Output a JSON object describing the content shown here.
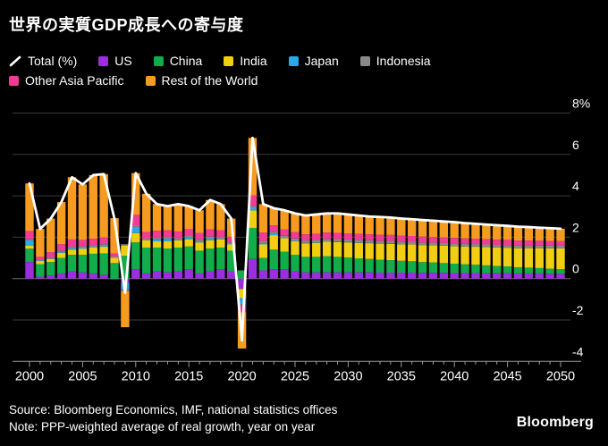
{
  "header": {
    "title": "世界の実質GDP成長への寄与度"
  },
  "footer": {
    "source": "Source: Bloomberg Economics, IMF, national statistics offices",
    "note": "Note: PPP-weighted average of real growth, year on year",
    "logo": "Bloomberg"
  },
  "chart_data": {
    "type": "bar",
    "stacked": true,
    "title": "世界の実質GDP成長への寄与度",
    "xlabel": "",
    "ylabel": "",
    "x_range": [
      2000,
      2050
    ],
    "x_tick_interval": 5,
    "x_tick_labels": [
      "2000",
      "2005",
      "2010",
      "2015",
      "2020",
      "2025",
      "2030",
      "2035",
      "2040",
      "2045",
      "2050"
    ],
    "ylim": [
      -4,
      8
    ],
    "yticks": [
      8,
      6,
      4,
      2,
      0,
      -2,
      -4
    ],
    "ytick_labels": [
      "8%",
      "6",
      "4",
      "2",
      "0",
      "-2",
      "-4"
    ],
    "grid": true,
    "legend_position": "top",
    "background_color": "#000000",
    "gridline_color": "#3b3b3b",
    "zeroline_color": "#6e6e6e",
    "axis_color": "#999999",
    "text_color": "#ffffff",
    "categories": [
      2000,
      2001,
      2002,
      2003,
      2004,
      2005,
      2006,
      2007,
      2008,
      2009,
      2010,
      2011,
      2012,
      2013,
      2014,
      2015,
      2016,
      2017,
      2018,
      2019,
      2020,
      2021,
      2022,
      2023,
      2024,
      2025,
      2026,
      2027,
      2028,
      2029,
      2030,
      2031,
      2032,
      2033,
      2034,
      2035,
      2036,
      2037,
      2038,
      2039,
      2040,
      2041,
      2042,
      2043,
      2044,
      2045,
      2046,
      2047,
      2048,
      2049,
      2050
    ],
    "total_line": {
      "id": "total",
      "label": "Total (%)",
      "color": "#ffffff",
      "values": [
        4.6,
        2.4,
        2.9,
        3.7,
        4.9,
        4.55,
        5.0,
        5.05,
        2.89,
        -0.69,
        5.1,
        4.1,
        3.6,
        3.5,
        3.6,
        3.5,
        3.3,
        3.8,
        3.6,
        2.9,
        -2.98,
        6.8,
        3.6,
        3.4,
        3.3,
        3.15,
        3.05,
        3.1,
        3.15,
        3.15,
        3.1,
        3.05,
        3.0,
        2.98,
        2.95,
        2.9,
        2.87,
        2.83,
        2.8,
        2.76,
        2.73,
        2.68,
        2.65,
        2.61,
        2.58,
        2.55,
        2.51,
        2.49,
        2.46,
        2.44,
        2.41
      ]
    },
    "series": [
      {
        "id": "us",
        "label": "US",
        "color": "#9B2FDF",
        "values": [
          0.8,
          0.1,
          0.15,
          0.25,
          0.35,
          0.3,
          0.25,
          0.17,
          0.0,
          -0.2,
          0.45,
          0.25,
          0.35,
          0.3,
          0.35,
          0.45,
          0.25,
          0.35,
          0.45,
          0.35,
          -0.5,
          0.95,
          0.4,
          0.45,
          0.45,
          0.35,
          0.3,
          0.3,
          0.3,
          0.3,
          0.3,
          0.3,
          0.3,
          0.29,
          0.29,
          0.29,
          0.29,
          0.28,
          0.28,
          0.28,
          0.27,
          0.27,
          0.27,
          0.26,
          0.26,
          0.26,
          0.25,
          0.25,
          0.25,
          0.24,
          0.24
        ]
      },
      {
        "id": "china",
        "label": "China",
        "color": "#12AC4B",
        "values": [
          0.65,
          0.6,
          0.65,
          0.75,
          0.8,
          0.85,
          0.95,
          1.05,
          0.75,
          1.1,
          1.3,
          1.25,
          1.15,
          1.15,
          1.15,
          1.1,
          1.1,
          1.1,
          1.05,
          1.0,
          0.4,
          1.5,
          0.6,
          0.95,
          0.85,
          0.8,
          0.75,
          0.75,
          0.78,
          0.75,
          0.72,
          0.68,
          0.65,
          0.62,
          0.6,
          0.57,
          0.55,
          0.52,
          0.5,
          0.47,
          0.45,
          0.42,
          0.4,
          0.38,
          0.35,
          0.33,
          0.3,
          0.28,
          0.26,
          0.24,
          0.22
        ]
      },
      {
        "id": "india",
        "label": "India",
        "color": "#F2CE12",
        "values": [
          0.15,
          0.15,
          0.15,
          0.25,
          0.25,
          0.3,
          0.3,
          0.32,
          0.25,
          0.5,
          0.45,
          0.35,
          0.3,
          0.35,
          0.35,
          0.35,
          0.4,
          0.4,
          0.4,
          0.3,
          -0.45,
          0.85,
          0.65,
          0.7,
          0.65,
          0.65,
          0.65,
          0.68,
          0.7,
          0.72,
          0.73,
          0.75,
          0.76,
          0.78,
          0.79,
          0.8,
          0.81,
          0.82,
          0.83,
          0.84,
          0.85,
          0.86,
          0.87,
          0.88,
          0.89,
          0.9,
          0.92,
          0.94,
          0.96,
          0.98,
          1.0
        ]
      },
      {
        "id": "japan",
        "label": "Japan",
        "color": "#2CA8E4",
        "values": [
          0.25,
          0.02,
          0.01,
          0.05,
          0.07,
          0.05,
          0.04,
          0.04,
          -0.03,
          -0.35,
          0.3,
          0.0,
          0.1,
          0.12,
          0.02,
          0.08,
          0.05,
          0.1,
          0.03,
          0.02,
          -0.28,
          0.12,
          0.05,
          0.05,
          0.0,
          0.02,
          0.02,
          0.02,
          0.02,
          0.02,
          0.02,
          0.02,
          0.02,
          0.02,
          0.02,
          0.01,
          0.01,
          0.01,
          0.01,
          0.01,
          0.01,
          0.01,
          0.01,
          0.01,
          0.01,
          0.01,
          0.01,
          0.01,
          0.01,
          0.01,
          0.01
        ]
      },
      {
        "id": "indonesia",
        "label": "Indonesia",
        "color": "#8A8A8A",
        "values": [
          0.05,
          0.05,
          0.06,
          0.06,
          0.07,
          0.07,
          0.07,
          0.08,
          0.07,
          0.06,
          0.08,
          0.08,
          0.08,
          0.08,
          0.08,
          0.08,
          0.08,
          0.08,
          0.08,
          0.08,
          -0.05,
          0.1,
          0.12,
          0.12,
          0.12,
          0.12,
          0.12,
          0.12,
          0.12,
          0.12,
          0.12,
          0.12,
          0.12,
          0.12,
          0.12,
          0.12,
          0.12,
          0.12,
          0.12,
          0.12,
          0.12,
          0.12,
          0.12,
          0.12,
          0.12,
          0.12,
          0.12,
          0.12,
          0.12,
          0.12,
          0.12
        ]
      },
      {
        "id": "other_asia_pacific",
        "label": "Other Asia Pacific",
        "color": "#F23A97",
        "values": [
          0.4,
          0.13,
          0.25,
          0.3,
          0.35,
          0.3,
          0.32,
          0.33,
          0.15,
          -0.05,
          0.5,
          0.32,
          0.33,
          0.33,
          0.33,
          0.33,
          0.33,
          0.35,
          0.33,
          0.27,
          -0.35,
          0.5,
          0.4,
          0.3,
          0.3,
          0.3,
          0.3,
          0.3,
          0.3,
          0.3,
          0.3,
          0.3,
          0.29,
          0.29,
          0.29,
          0.28,
          0.28,
          0.28,
          0.27,
          0.27,
          0.27,
          0.26,
          0.26,
          0.25,
          0.25,
          0.25,
          0.24,
          0.24,
          0.23,
          0.23,
          0.22
        ]
      },
      {
        "id": "rest_of_world",
        "label": "Rest of the World",
        "color": "#F59B20",
        "values": [
          2.3,
          1.35,
          1.63,
          2.04,
          3.01,
          2.68,
          3.07,
          3.06,
          1.7,
          -1.75,
          2.02,
          1.85,
          1.29,
          1.17,
          1.32,
          1.11,
          1.09,
          1.42,
          1.26,
          0.88,
          -1.75,
          2.78,
          1.38,
          0.83,
          0.93,
          0.91,
          0.91,
          0.93,
          0.93,
          0.94,
          0.91,
          0.88,
          0.86,
          0.86,
          0.84,
          0.83,
          0.81,
          0.8,
          0.79,
          0.77,
          0.76,
          0.74,
          0.72,
          0.71,
          0.7,
          0.68,
          0.67,
          0.65,
          0.63,
          0.62,
          0.6
        ]
      }
    ],
    "legend_rows": [
      [
        "total",
        "us",
        "china",
        "india",
        "japan",
        "indonesia"
      ],
      [
        "other_asia_pacific",
        "rest_of_world"
      ]
    ]
  }
}
